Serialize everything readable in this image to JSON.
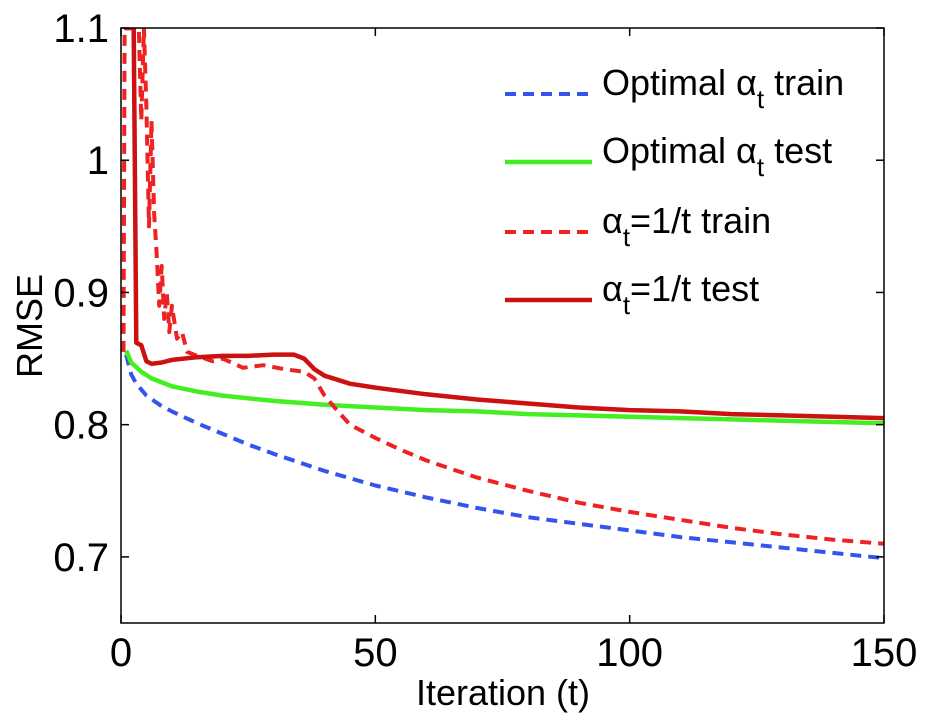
{
  "chart_data": {
    "type": "line",
    "title": "",
    "xlabel": "Iteration (t)",
    "ylabel": "RMSE",
    "xlim": [
      0,
      150
    ],
    "ylim": [
      0.65,
      1.1
    ],
    "xticks": [
      0,
      50,
      100,
      150
    ],
    "xtick_labels": [
      "0",
      "50",
      "100",
      "150"
    ],
    "yticks": [
      0.7,
      0.8,
      0.9,
      1.0,
      1.1
    ],
    "ytick_labels": [
      "0.7",
      "0.8",
      "0.9",
      "1",
      "1.1"
    ],
    "legend_position": "top-right",
    "series": [
      {
        "name": "Optimal αt train",
        "legend": {
          "pre": "Optimal ",
          "alpha": "α",
          "sub": "t",
          "post": " train"
        },
        "color": "#3355ee",
        "style": "dashed",
        "points": [
          [
            1,
            0.853
          ],
          [
            2,
            0.838
          ],
          [
            3,
            0.831
          ],
          [
            5,
            0.822
          ],
          [
            8,
            0.814
          ],
          [
            10,
            0.81
          ],
          [
            15,
            0.801
          ],
          [
            20,
            0.793
          ],
          [
            25,
            0.785
          ],
          [
            30,
            0.778
          ],
          [
            40,
            0.765
          ],
          [
            50,
            0.754
          ],
          [
            60,
            0.745
          ],
          [
            70,
            0.737
          ],
          [
            80,
            0.73
          ],
          [
            90,
            0.725
          ],
          [
            100,
            0.72
          ],
          [
            110,
            0.715
          ],
          [
            120,
            0.711
          ],
          [
            130,
            0.707
          ],
          [
            140,
            0.703
          ],
          [
            150,
            0.699
          ]
        ]
      },
      {
        "name": "Optimal αt test",
        "legend": {
          "pre": "Optimal ",
          "alpha": "α",
          "sub": "t",
          "post": " test"
        },
        "color": "#44ee22",
        "style": "solid",
        "points": [
          [
            1,
            0.856
          ],
          [
            2,
            0.847
          ],
          [
            4,
            0.84
          ],
          [
            6,
            0.835
          ],
          [
            10,
            0.829
          ],
          [
            15,
            0.825
          ],
          [
            20,
            0.822
          ],
          [
            30,
            0.818
          ],
          [
            40,
            0.815
          ],
          [
            50,
            0.813
          ],
          [
            60,
            0.811
          ],
          [
            70,
            0.81
          ],
          [
            80,
            0.808
          ],
          [
            90,
            0.807
          ],
          [
            100,
            0.806
          ],
          [
            110,
            0.805
          ],
          [
            120,
            0.804
          ],
          [
            130,
            0.803
          ],
          [
            140,
            0.802
          ],
          [
            150,
            0.801
          ]
        ]
      },
      {
        "name": "αt=1/t train",
        "legend": {
          "pre": "",
          "alpha": "α",
          "sub": "t",
          "post": "=1/t train"
        },
        "color": "#ee2222",
        "style": "dashed",
        "points": [
          [
            0.5,
            0.855
          ],
          [
            0.7,
            1.1
          ],
          [
            3.5,
            1.1
          ],
          [
            4,
            1.03
          ],
          [
            4.5,
            1.1
          ],
          [
            5,
            1.04
          ],
          [
            5.5,
            0.95
          ],
          [
            6,
            1.03
          ],
          [
            6.5,
            0.96
          ],
          [
            7,
            0.93
          ],
          [
            7.5,
            0.89
          ],
          [
            8,
            0.92
          ],
          [
            8.5,
            0.88
          ],
          [
            9,
            0.9
          ],
          [
            9.5,
            0.87
          ],
          [
            10,
            0.89
          ],
          [
            11,
            0.865
          ],
          [
            12,
            0.87
          ],
          [
            13,
            0.855
          ],
          [
            15,
            0.852
          ],
          [
            18,
            0.848
          ],
          [
            20,
            0.85
          ],
          [
            24,
            0.843
          ],
          [
            28,
            0.845
          ],
          [
            32,
            0.842
          ],
          [
            36,
            0.84
          ],
          [
            38,
            0.835
          ],
          [
            40,
            0.822
          ],
          [
            42,
            0.813
          ],
          [
            45,
            0.8
          ],
          [
            50,
            0.79
          ],
          [
            55,
            0.781
          ],
          [
            60,
            0.773
          ],
          [
            70,
            0.76
          ],
          [
            80,
            0.75
          ],
          [
            90,
            0.741
          ],
          [
            100,
            0.734
          ],
          [
            110,
            0.728
          ],
          [
            120,
            0.722
          ],
          [
            130,
            0.717
          ],
          [
            140,
            0.713
          ],
          [
            150,
            0.71
          ]
        ]
      },
      {
        "name": "αt=1/t test",
        "legend": {
          "pre": "",
          "alpha": "α",
          "sub": "t",
          "post": "=1/t test"
        },
        "color": "#cc1111",
        "style": "solid",
        "points": [
          [
            0.6,
            1.1
          ],
          [
            2.5,
            1.1
          ],
          [
            3,
            0.862
          ],
          [
            4,
            0.86
          ],
          [
            5,
            0.848
          ],
          [
            6,
            0.846
          ],
          [
            8,
            0.847
          ],
          [
            10,
            0.849
          ],
          [
            15,
            0.851
          ],
          [
            20,
            0.852
          ],
          [
            25,
            0.852
          ],
          [
            30,
            0.853
          ],
          [
            34,
            0.853
          ],
          [
            36,
            0.85
          ],
          [
            38,
            0.842
          ],
          [
            40,
            0.837
          ],
          [
            45,
            0.831
          ],
          [
            50,
            0.828
          ],
          [
            60,
            0.823
          ],
          [
            70,
            0.819
          ],
          [
            80,
            0.816
          ],
          [
            90,
            0.813
          ],
          [
            100,
            0.811
          ],
          [
            110,
            0.81
          ],
          [
            120,
            0.808
          ],
          [
            130,
            0.807
          ],
          [
            140,
            0.806
          ],
          [
            150,
            0.805
          ]
        ]
      }
    ]
  }
}
